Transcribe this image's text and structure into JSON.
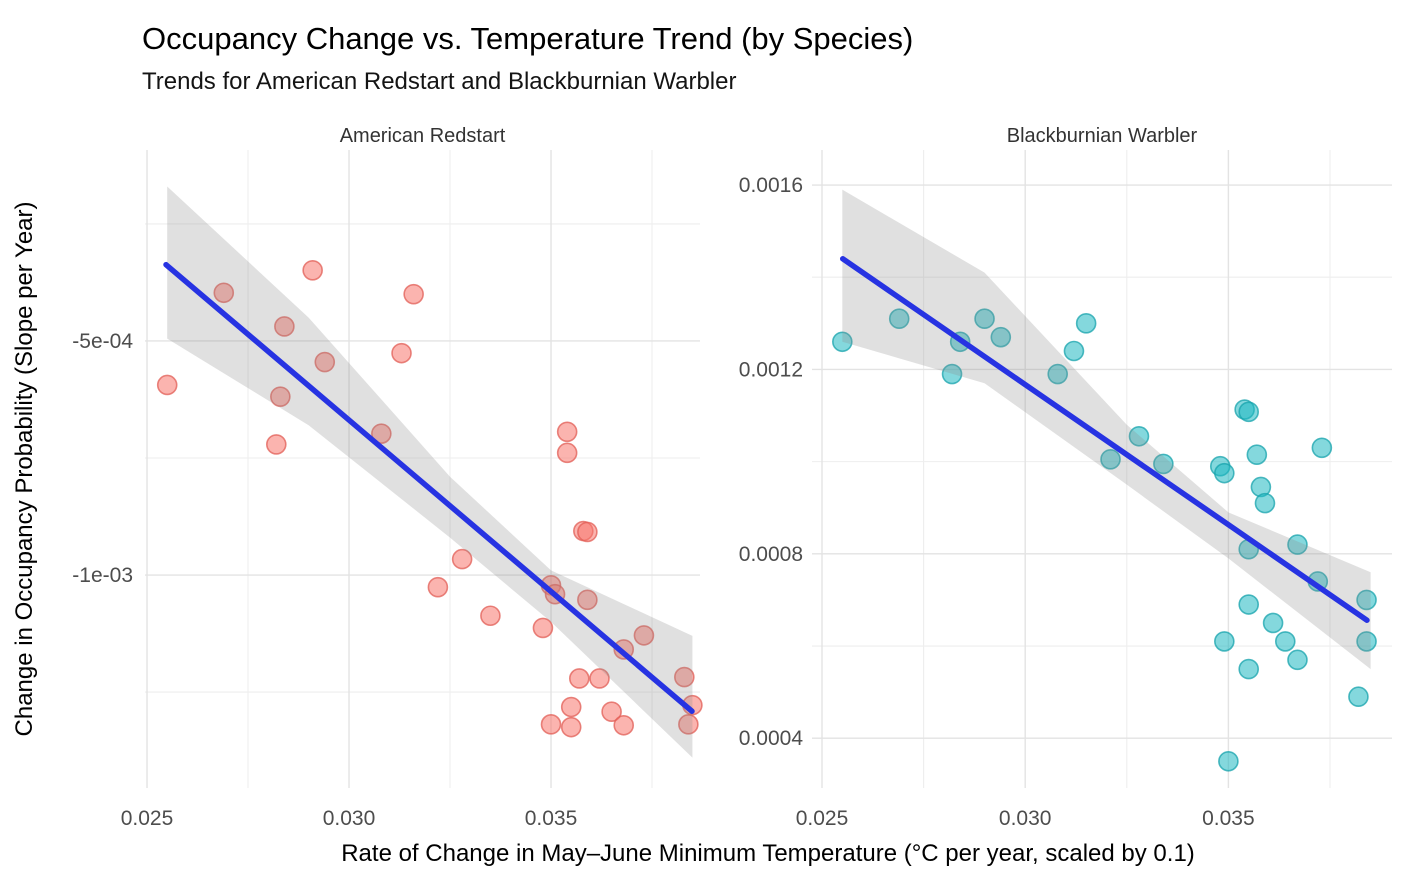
{
  "header": {
    "title": "Occupancy Change vs. Temperature Trend (by Species)",
    "subtitle": "Trends for American Redstart and Blackburnian Warbler"
  },
  "axes": {
    "x_label": "Rate of Change in May–June Minimum Temperature (°C per year, scaled by 0.1)",
    "y_label": "Change in Occupancy Probability (Slope per Year)"
  },
  "style": {
    "trend_color": "#2733E2",
    "ribbon_color": "#8c8c8c",
    "grid_major": "#e3e3e3",
    "grid_minor": "#eeeeee"
  },
  "chart_data": [
    {
      "type": "scatter",
      "facet": "American Redstart",
      "point_color": "#F8766D",
      "point_stroke": "#E25D55",
      "xlim": [
        0.02495,
        0.038688
      ],
      "ylim": [
        -0.001455,
        -9.2e-05
      ],
      "x_major": [
        {
          "v": 0.025,
          "label": "0.025"
        },
        {
          "v": 0.03,
          "label": "0.030"
        },
        {
          "v": 0.035,
          "label": "0.035"
        }
      ],
      "x_minor": [
        0.0275,
        0.0325,
        0.0375
      ],
      "y_major": [
        {
          "v": -0.0005,
          "label": "-5e-04"
        },
        {
          "v": -0.001,
          "label": "-1e-03"
        }
      ],
      "y_minor": [
        -0.00025,
        -0.00075,
        -0.00125
      ],
      "points": [
        [
          0.0269,
          -0.000397
        ],
        [
          0.0291,
          -0.000349
        ],
        [
          0.0316,
          -0.0004
        ],
        [
          0.0284,
          -0.000469
        ],
        [
          0.0294,
          -0.000545
        ],
        [
          0.0313,
          -0.000526
        ],
        [
          0.0255,
          -0.000594
        ],
        [
          0.0283,
          -0.000619
        ],
        [
          0.0308,
          -0.000698
        ],
        [
          0.0282,
          -0.000721
        ],
        [
          0.0354,
          -0.000694
        ],
        [
          0.0354,
          -0.000739
        ],
        [
          0.0358,
          -0.000906
        ],
        [
          0.0359,
          -0.000908
        ],
        [
          0.0328,
          -0.000966
        ],
        [
          0.0322,
          -0.001026
        ],
        [
          0.035,
          -0.001022
        ],
        [
          0.0351,
          -0.001041
        ],
        [
          0.0359,
          -0.001053
        ],
        [
          0.0335,
          -0.001087
        ],
        [
          0.0348,
          -0.001113
        ],
        [
          0.0373,
          -0.001129
        ],
        [
          0.0368,
          -0.001159
        ],
        [
          0.0383,
          -0.001218
        ],
        [
          0.0357,
          -0.001221
        ],
        [
          0.0362,
          -0.001221
        ],
        [
          0.0355,
          -0.001282
        ],
        [
          0.0365,
          -0.001292
        ],
        [
          0.035,
          -0.001319
        ],
        [
          0.0355,
          -0.001325
        ],
        [
          0.0368,
          -0.001321
        ],
        [
          0.0385,
          -0.001278
        ],
        [
          0.0384,
          -0.001319
        ]
      ],
      "trend": [
        [
          0.02547,
          -0.000337
        ],
        [
          0.03849,
          -0.001291
        ]
      ],
      "ribbon": {
        "x": [
          0.0255,
          0.029,
          0.0325,
          0.035,
          0.0385
        ],
        "upper": [
          -0.00017,
          -0.00045,
          -0.00079,
          -0.00099,
          -0.00113
        ],
        "lower": [
          -0.000495,
          -0.00068,
          -0.00092,
          -0.0011,
          -0.00139
        ]
      }
    },
    {
      "type": "scatter",
      "facet": "Blackburnian Warbler",
      "point_color": "#1FB8C1",
      "point_stroke": "#17A3AC",
      "xlim": [
        0.024754,
        0.039026
      ],
      "ylim": [
        0.000292,
        0.001676
      ],
      "x_major": [
        {
          "v": 0.025,
          "label": "0.025"
        },
        {
          "v": 0.03,
          "label": "0.030"
        },
        {
          "v": 0.035,
          "label": "0.035"
        }
      ],
      "x_minor": [
        0.0275,
        0.0325,
        0.0375
      ],
      "y_major": [
        {
          "v": 0.0016,
          "label": "0.0016"
        },
        {
          "v": 0.0012,
          "label": "0.0012"
        },
        {
          "v": 0.0008,
          "label": "0.0008"
        },
        {
          "v": 0.0004,
          "label": "0.0004"
        }
      ],
      "y_minor": [
        0.0014,
        0.001,
        0.0006
      ],
      "points": [
        [
          0.0255,
          0.00126
        ],
        [
          0.0269,
          0.00131
        ],
        [
          0.0284,
          0.00126
        ],
        [
          0.029,
          0.00131
        ],
        [
          0.0294,
          0.00127
        ],
        [
          0.0282,
          0.00119
        ],
        [
          0.0308,
          0.00119
        ],
        [
          0.0315,
          0.0013
        ],
        [
          0.0312,
          0.00124
        ],
        [
          0.0354,
          0.001113
        ],
        [
          0.0355,
          0.001108
        ],
        [
          0.0328,
          0.001055
        ],
        [
          0.0321,
          0.001005
        ],
        [
          0.0334,
          0.000995
        ],
        [
          0.0357,
          0.001015
        ],
        [
          0.0348,
          0.00099
        ],
        [
          0.0349,
          0.000975
        ],
        [
          0.0373,
          0.00103
        ],
        [
          0.0358,
          0.000945
        ],
        [
          0.0359,
          0.00091
        ],
        [
          0.0355,
          0.00081
        ],
        [
          0.0367,
          0.00082
        ],
        [
          0.0372,
          0.00074
        ],
        [
          0.0384,
          0.0007
        ],
        [
          0.0355,
          0.00069
        ],
        [
          0.0361,
          0.00065
        ],
        [
          0.0364,
          0.00061
        ],
        [
          0.0349,
          0.00061
        ],
        [
          0.0367,
          0.00057
        ],
        [
          0.0355,
          0.00055
        ],
        [
          0.0384,
          0.00061
        ],
        [
          0.0382,
          0.00049
        ],
        [
          0.035,
          0.00035
        ]
      ],
      "trend": [
        [
          0.02551,
          0.00144
        ],
        [
          0.03841,
          0.000656
        ]
      ],
      "ribbon": {
        "x": [
          0.0255,
          0.029,
          0.0325,
          0.035,
          0.0385
        ],
        "upper": [
          0.00159,
          0.00141,
          0.00108,
          0.00089,
          0.00076
        ],
        "lower": [
          0.00126,
          0.00117,
          0.00095,
          0.00079,
          0.00055
        ]
      }
    }
  ]
}
